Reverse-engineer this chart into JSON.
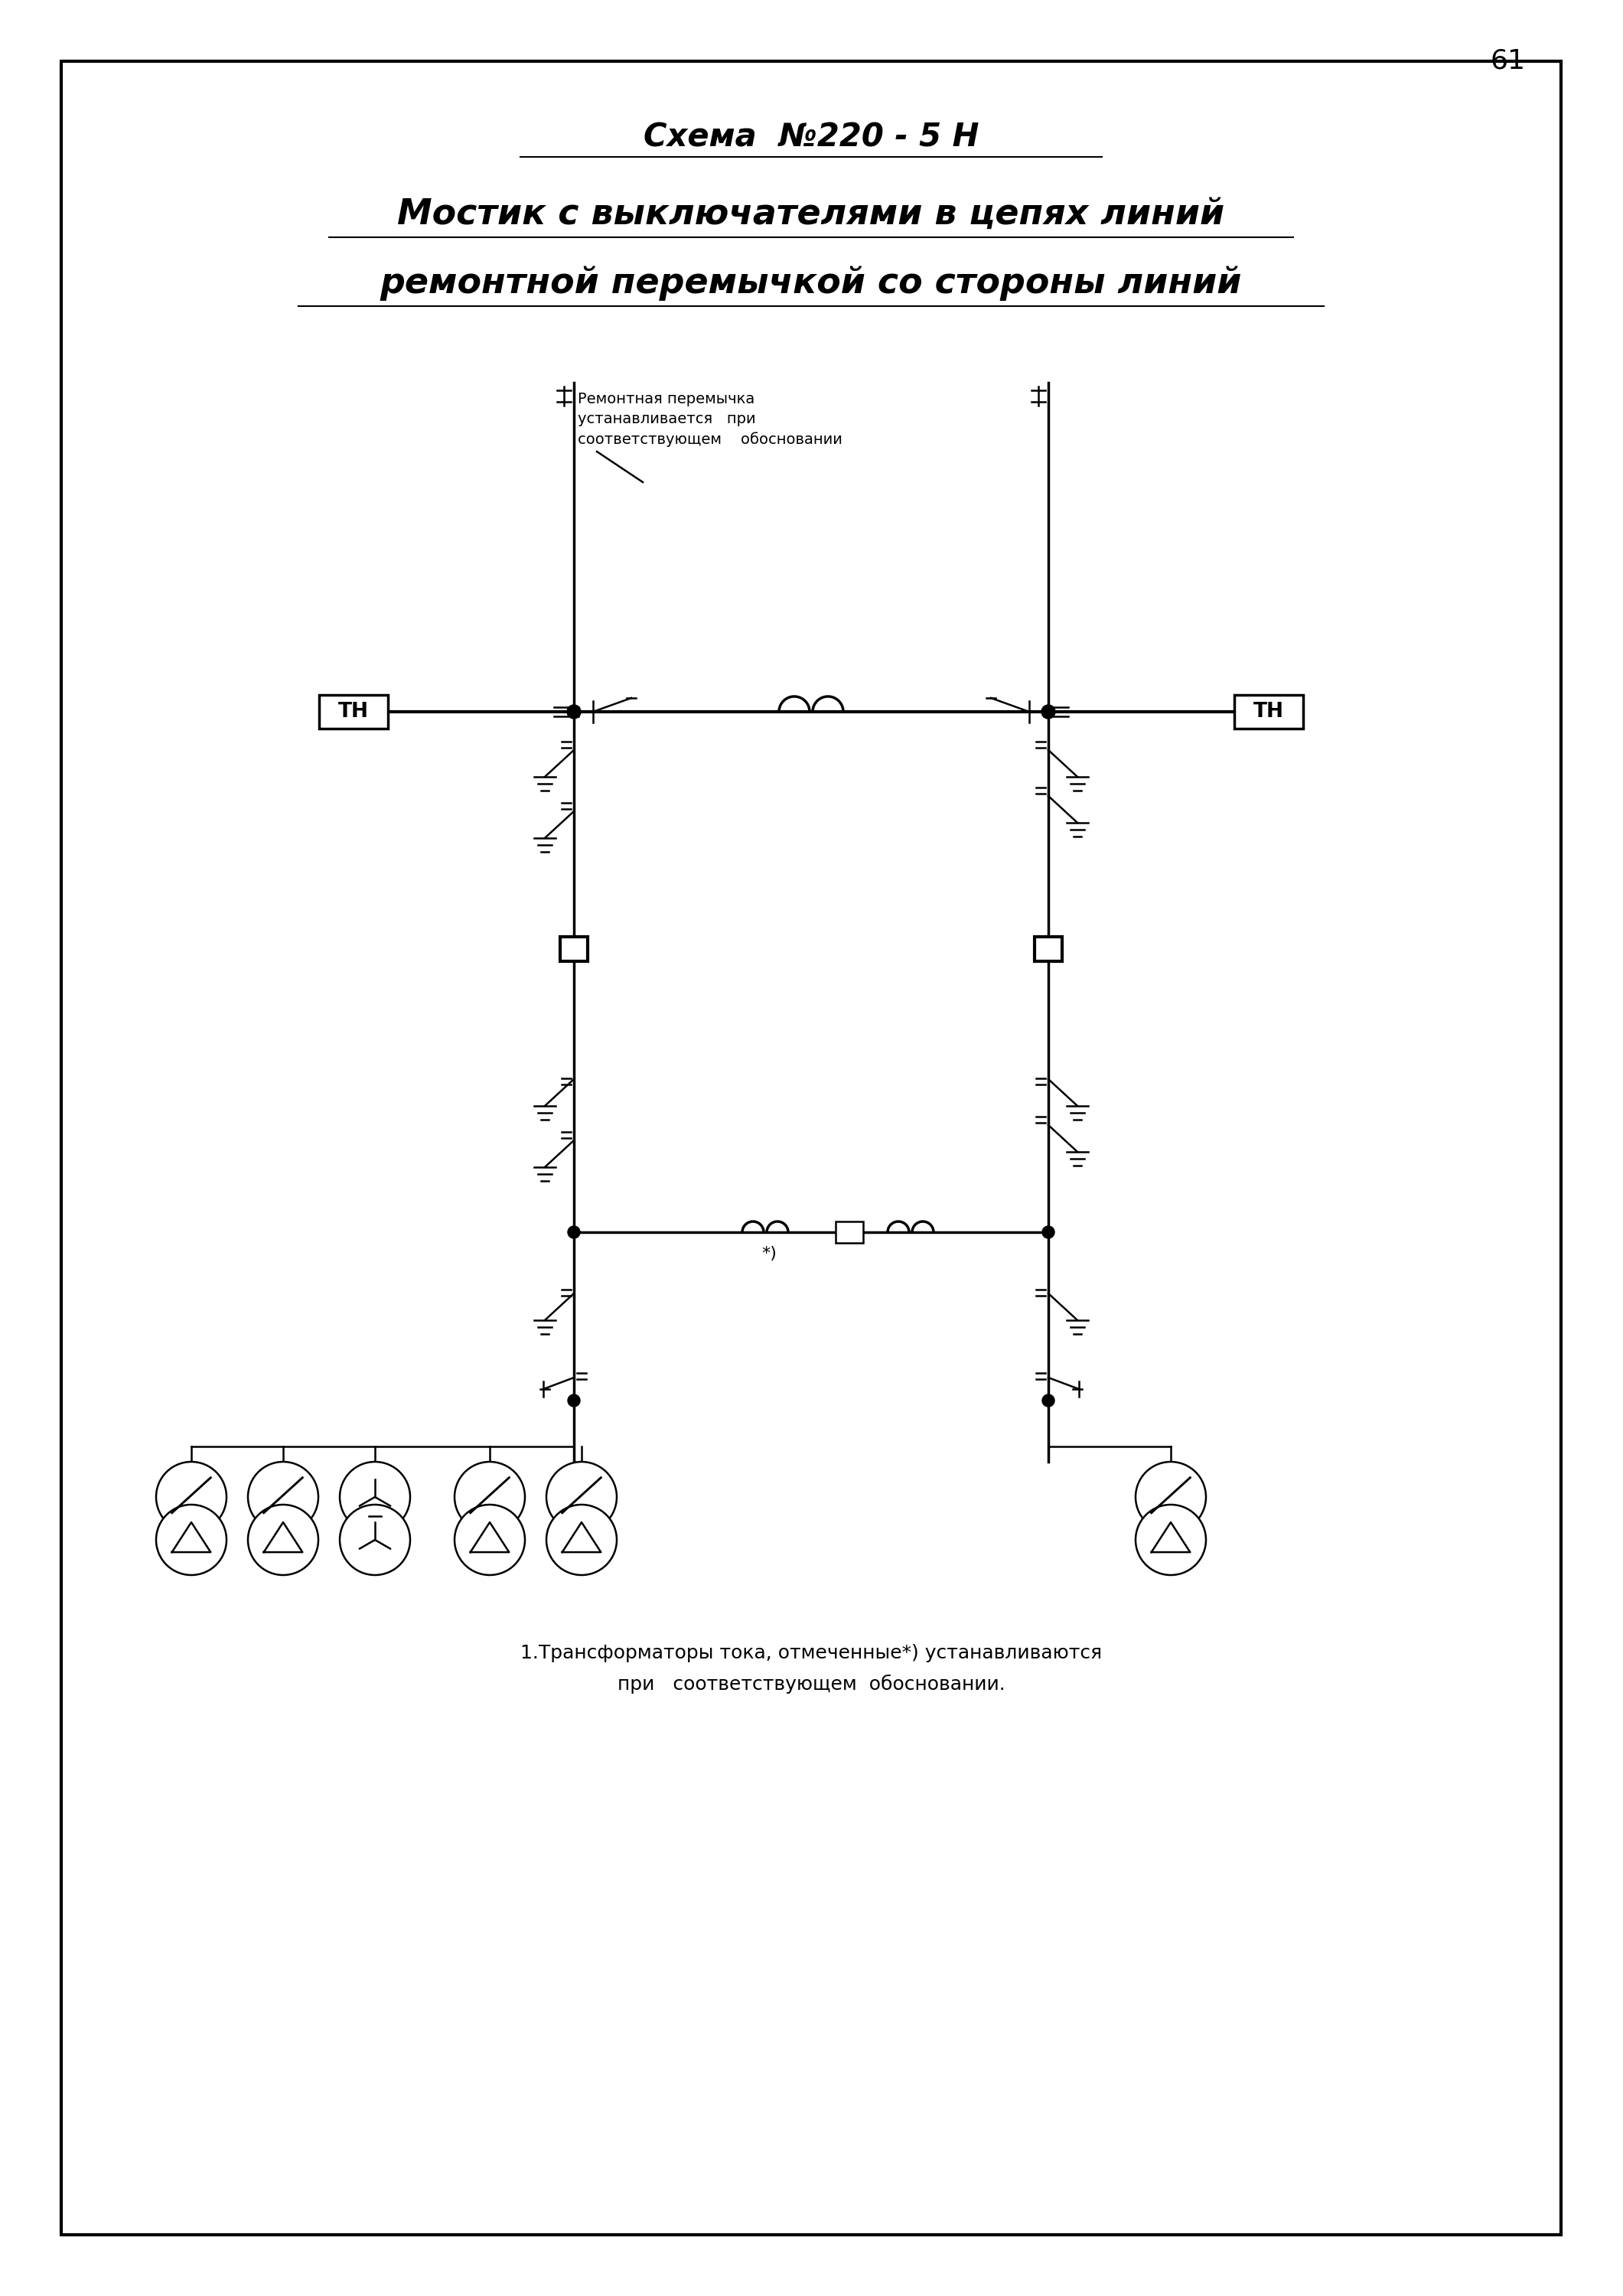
{
  "title_line1": "Схема  №220 - 5 Н",
  "title_line2": "Мостик с выключателями в цепях линий",
  "title_line3": "ремонтной перемычкой со стороны линий",
  "page_number": "61",
  "note_line1": "1.Трансформаторы тока, отмеченные*) устанавливаются",
  "note_line2": "при   соответствующем  обосновании.",
  "ann_line1": "Ремонтная перемычка",
  "ann_line2": "устанавливается   при",
  "ann_line3": "соответствующем    обосновании",
  "bg_color": "#ffffff",
  "line_color": "#000000",
  "lw": 1.8,
  "lw_thick": 2.5
}
